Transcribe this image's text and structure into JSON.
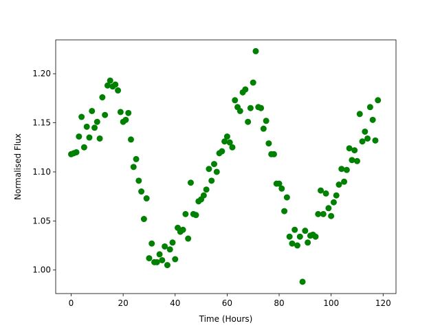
{
  "chart_data": {
    "type": "scatter",
    "xlabel": "Time (Hours)",
    "ylabel": "Normalised Flux",
    "color": "#008000",
    "x": [
      0,
      1,
      2,
      3,
      4,
      5,
      6,
      7,
      8,
      9,
      10,
      11,
      12,
      13,
      14,
      15,
      16,
      17,
      18,
      19,
      20,
      21,
      22,
      23,
      24,
      25,
      26,
      27,
      28,
      29,
      30,
      31,
      32,
      33,
      34,
      35,
      36,
      37,
      38,
      39,
      40,
      41,
      42,
      43,
      44,
      45,
      46,
      47,
      48,
      49,
      50,
      51,
      52,
      53,
      54,
      55,
      56,
      57,
      58,
      59,
      60,
      61,
      62,
      63,
      64,
      65,
      66,
      67,
      68,
      69,
      70,
      71,
      72,
      73,
      74,
      75,
      76,
      77,
      78,
      79,
      80,
      81,
      82,
      83,
      84,
      85,
      86,
      87,
      88,
      89,
      90,
      91,
      92,
      93,
      94,
      95,
      96,
      97,
      98,
      99,
      100,
      101,
      102,
      103,
      104,
      105,
      106,
      107,
      108,
      109,
      110,
      111,
      112,
      113,
      114,
      115,
      116,
      117,
      118
    ],
    "values": [
      1.118,
      1.119,
      1.12,
      1.136,
      1.156,
      1.125,
      1.146,
      1.135,
      1.162,
      1.145,
      1.151,
      1.134,
      1.176,
      1.158,
      1.188,
      1.193,
      1.187,
      1.189,
      1.183,
      1.161,
      1.151,
      1.153,
      1.16,
      1.133,
      1.105,
      1.113,
      1.091,
      1.08,
      1.052,
      1.073,
      1.012,
      1.027,
      1.008,
      1.008,
      1.016,
      1.01,
      1.024,
      1.005,
      1.021,
      1.028,
      1.011,
      1.043,
      1.039,
      1.041,
      1.057,
      1.032,
      1.089,
      1.057,
      1.056,
      1.07,
      1.072,
      1.076,
      1.082,
      1.103,
      1.091,
      1.108,
      1.1,
      1.119,
      1.121,
      1.131,
      1.136,
      1.13,
      1.125,
      1.173,
      1.166,
      1.162,
      1.181,
      1.184,
      1.151,
      1.165,
      1.191,
      1.223,
      1.166,
      1.165,
      1.144,
      1.152,
      1.129,
      1.118,
      1.118,
      1.088,
      1.088,
      1.083,
      1.06,
      1.074,
      1.034,
      1.027,
      1.041,
      1.025,
      1.034,
      0.988,
      1.04,
      1.028,
      1.035,
      1.036,
      1.034,
      1.057,
      1.081,
      1.057,
      1.078,
      1.063,
      1.055,
      1.069,
      1.076,
      1.087,
      1.103,
      1.09,
      1.102,
      1.124,
      1.112,
      1.122,
      1.111,
      1.159,
      1.131,
      1.141,
      1.134,
      1.166,
      1.153,
      1.132,
      1.173
    ],
    "xlim": [
      -5.95,
      124.95
    ],
    "ylim": [
      0.976,
      1.2345
    ],
    "xticks": [
      0,
      20,
      40,
      60,
      80,
      100,
      120
    ],
    "yticks": [
      {
        "value": 1.0,
        "label": "1.00"
      },
      {
        "value": 1.05,
        "label": "1.05"
      },
      {
        "value": 1.1,
        "label": "1.10"
      },
      {
        "value": 1.15,
        "label": "1.15"
      },
      {
        "value": 1.2,
        "label": "1.20"
      }
    ]
  }
}
